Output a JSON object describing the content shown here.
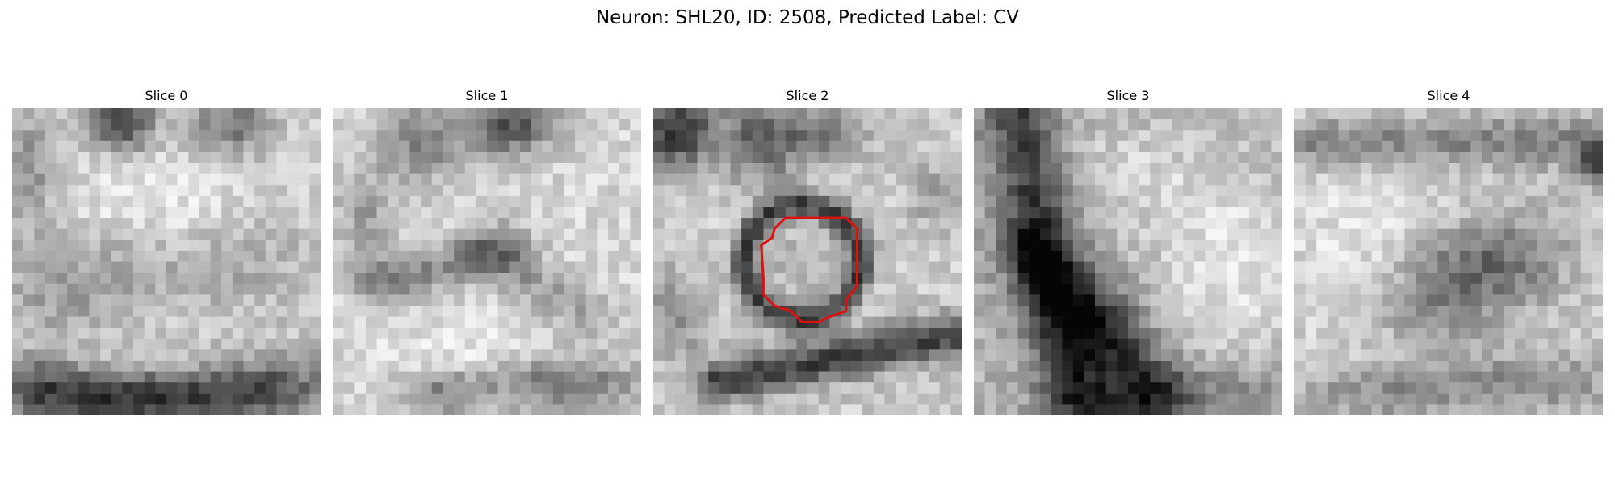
{
  "figure": {
    "title": "Neuron: SHL20, ID: 2508, Predicted Label: CV"
  },
  "panels": [
    {
      "title": "Slice 0"
    },
    {
      "title": "Slice 1"
    },
    {
      "title": "Slice 2"
    },
    {
      "title": "Slice 3"
    },
    {
      "title": "Slice 4"
    }
  ],
  "colors": {
    "background": "#ffffff",
    "contour": "#e01010",
    "colormap": "grayscale"
  }
}
